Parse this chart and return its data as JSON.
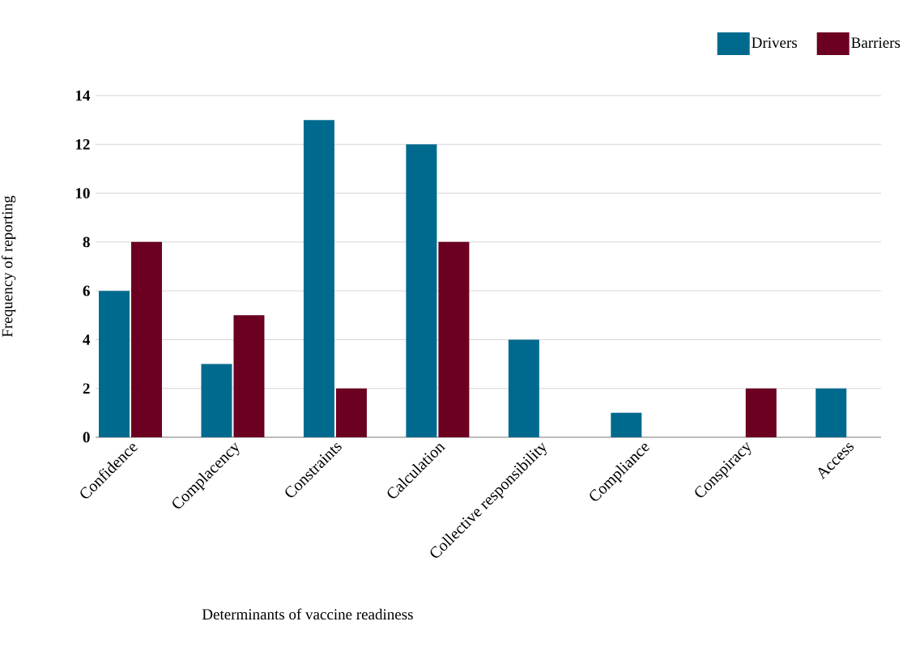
{
  "chart_data": {
    "type": "bar",
    "xlabel": "Determinants of vaccine readiness",
    "ylabel": "Frequency of reporting",
    "categories": [
      "Confidence",
      "Complacency",
      "Constraints",
      "Calculation",
      "Collective responsibility",
      "Compliance",
      "Conspiracy",
      "Access"
    ],
    "series": [
      {
        "name": "Drivers",
        "color": "#006a8e",
        "values": [
          6,
          3,
          13,
          12,
          4,
          1,
          0,
          2
        ]
      },
      {
        "name": "Barriers",
        "color": "#6b0020",
        "values": [
          8,
          5,
          2,
          8,
          0,
          0,
          2,
          0
        ]
      }
    ],
    "ylim": [
      0,
      14
    ],
    "yticks": [
      0,
      2,
      4,
      6,
      8,
      10,
      12,
      14
    ],
    "grid": "y",
    "legend": "top right"
  }
}
